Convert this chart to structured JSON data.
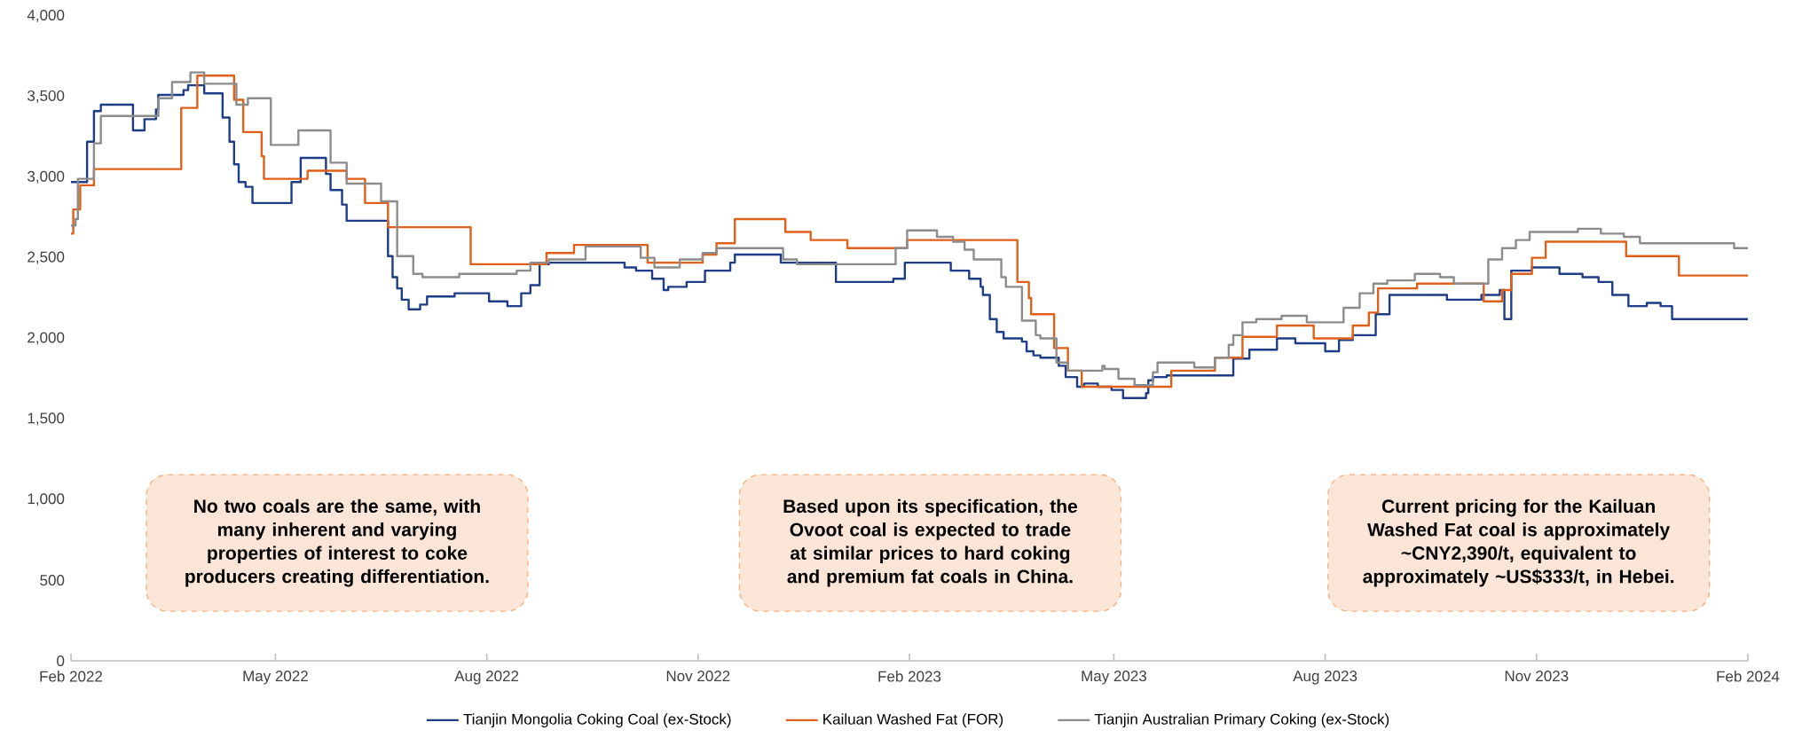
{
  "chart_data": {
    "type": "step",
    "xlim": [
      "2022-02-01",
      "2024-02-01"
    ],
    "xticks": [
      {
        "value": "2022-02-01",
        "label": "Feb 2022"
      },
      {
        "value": "2022-05-01",
        "label": "May 2022"
      },
      {
        "value": "2022-08-01",
        "label": "Aug 2022"
      },
      {
        "value": "2022-11-01",
        "label": "Nov 2022"
      },
      {
        "value": "2023-02-01",
        "label": "Feb 2023"
      },
      {
        "value": "2023-05-01",
        "label": "May 2023"
      },
      {
        "value": "2023-08-01",
        "label": "Aug 2023"
      },
      {
        "value": "2023-11-01",
        "label": "Nov 2023"
      },
      {
        "value": "2024-02-01",
        "label": "Feb 2024"
      }
    ],
    "ylim": [
      0,
      4000
    ],
    "yticks": [
      0,
      500,
      {
        "value": 1000,
        "label": "1,000"
      },
      {
        "value": 1500,
        "label": "1,500"
      },
      {
        "value": 2000,
        "label": "2,000"
      },
      {
        "value": 2500,
        "label": "2,500"
      },
      {
        "value": 3000,
        "label": "3,000"
      },
      {
        "value": 3500,
        "label": "3,500"
      },
      {
        "value": 4000,
        "label": "4,000"
      }
    ],
    "legend": "bottom",
    "series": [
      {
        "name": "Tianjin Mongolia Coking Coal (ex-Stock)",
        "color": "#1f3c88",
        "x": [
          "2022-02-01",
          "2022-02-08",
          "2022-02-11",
          "2022-02-14",
          "2022-02-28",
          "2022-03-05",
          "2022-03-10",
          "2022-03-11",
          "2022-03-22",
          "2022-03-24",
          "2022-03-31",
          "2022-04-08",
          "2022-04-11",
          "2022-04-13",
          "2022-04-15",
          "2022-04-18",
          "2022-04-21",
          "2022-05-08",
          "2022-05-12",
          "2022-05-23",
          "2022-05-25",
          "2022-05-30",
          "2022-06-01",
          "2022-06-19",
          "2022-06-21",
          "2022-06-23",
          "2022-06-25",
          "2022-06-28",
          "2022-07-03",
          "2022-07-06",
          "2022-07-18",
          "2022-08-02",
          "2022-08-10",
          "2022-08-16",
          "2022-08-20",
          "2022-08-24",
          "2022-08-28",
          "2022-09-30",
          "2022-10-05",
          "2022-10-12",
          "2022-10-17",
          "2022-10-19",
          "2022-10-27",
          "2022-11-04",
          "2022-11-15",
          "2022-11-17",
          "2022-12-07",
          "2022-12-31",
          "2023-01-25",
          "2023-01-30",
          "2023-02-19",
          "2023-02-27",
          "2023-03-04",
          "2023-03-05",
          "2023-03-08",
          "2023-03-11",
          "2023-03-14",
          "2023-03-22",
          "2023-03-24",
          "2023-03-27",
          "2023-03-30",
          "2023-04-07",
          "2023-04-10",
          "2023-04-15",
          "2023-04-18",
          "2023-04-24",
          "2023-04-30",
          "2023-05-05",
          "2023-05-15",
          "2023-05-16",
          "2023-05-18",
          "2023-05-24",
          "2023-06-22",
          "2023-06-29",
          "2023-07-11",
          "2023-07-19",
          "2023-08-01",
          "2023-08-07",
          "2023-08-13",
          "2023-08-23",
          "2023-08-29",
          "2023-09-23",
          "2023-10-08",
          "2023-10-16",
          "2023-10-18",
          "2023-10-21",
          "2023-10-30",
          "2023-11-11",
          "2023-11-21",
          "2023-11-28",
          "2023-12-04",
          "2023-12-11",
          "2023-12-19",
          "2023-12-25",
          "2023-12-30",
          "2024-02-01"
        ],
        "values": [
          2970,
          3220,
          3410,
          3450,
          3290,
          3360,
          3420,
          3510,
          3540,
          3570,
          3520,
          3370,
          3220,
          3080,
          2970,
          2940,
          2840,
          2970,
          3120,
          3020,
          2920,
          2830,
          2730,
          2510,
          2380,
          2310,
          2240,
          2180,
          2210,
          2260,
          2280,
          2230,
          2200,
          2280,
          2330,
          2460,
          2470,
          2440,
          2420,
          2370,
          2300,
          2320,
          2350,
          2420,
          2470,
          2520,
          2470,
          2350,
          2370,
          2470,
          2420,
          2370,
          2320,
          2270,
          2120,
          2040,
          2000,
          1980,
          1920,
          1895,
          1880,
          1830,
          1760,
          1700,
          1720,
          1700,
          1680,
          1630,
          1660,
          1740,
          1760,
          1770,
          1875,
          1930,
          2000,
          1970,
          1920,
          1990,
          2020,
          2150,
          2270,
          2240,
          2270,
          2300,
          2120,
          2420,
          2440,
          2400,
          2380,
          2350,
          2270,
          2200,
          2220,
          2200,
          2120,
          2120
        ]
      },
      {
        "name": "Kailuan Washed Fat (FOR)",
        "color": "#e0601a",
        "x": [
          "2022-02-01",
          "2022-02-02",
          "2022-02-05",
          "2022-02-11",
          "2022-03-21",
          "2022-03-28",
          "2022-04-13",
          "2022-04-17",
          "2022-04-25",
          "2022-04-26",
          "2022-05-15",
          "2022-06-01",
          "2022-06-09",
          "2022-06-19",
          "2022-07-25",
          "2022-08-27",
          "2022-09-08",
          "2022-10-10",
          "2022-11-03",
          "2022-11-09",
          "2022-11-17",
          "2022-12-09",
          "2022-12-20",
          "2023-01-05",
          "2023-01-31",
          "2023-03-20",
          "2023-03-25",
          "2023-03-26",
          "2023-04-05",
          "2023-04-11",
          "2023-04-17",
          "2023-05-26",
          "2023-06-14",
          "2023-06-26",
          "2023-07-11",
          "2023-07-27",
          "2023-08-13",
          "2023-08-20",
          "2023-08-24",
          "2023-09-10",
          "2023-10-09",
          "2023-10-17",
          "2023-10-21",
          "2023-10-30",
          "2023-11-05",
          "2023-12-10",
          "2024-01-02",
          "2024-02-01"
        ],
        "values": [
          2650,
          2800,
          2950,
          3050,
          3430,
          3630,
          3480,
          3280,
          3130,
          2990,
          3040,
          2990,
          2840,
          2690,
          2460,
          2530,
          2580,
          2470,
          2520,
          2590,
          2740,
          2660,
          2610,
          2560,
          2610,
          2350,
          2250,
          2150,
          1940,
          1800,
          1700,
          1800,
          1880,
          2010,
          2080,
          2000,
          2080,
          2160,
          2310,
          2340,
          2230,
          2300,
          2400,
          2500,
          2600,
          2510,
          2390,
          2390
        ]
      },
      {
        "name": "Tianjin Australian Primary Coking (ex-Stock)",
        "color": "#8c8c8c",
        "x": [
          "2022-02-01",
          "2022-02-03",
          "2022-02-04",
          "2022-02-11",
          "2022-02-14",
          "2022-03-11",
          "2022-03-17",
          "2022-03-25",
          "2022-03-31",
          "2022-04-14",
          "2022-04-19",
          "2022-04-29",
          "2022-05-11",
          "2022-05-25",
          "2022-06-01",
          "2022-06-16",
          "2022-06-23",
          "2022-06-30",
          "2022-07-04",
          "2022-07-20",
          "2022-08-14",
          "2022-08-20",
          "2022-08-28",
          "2022-09-13",
          "2022-10-07",
          "2022-10-13",
          "2022-10-24",
          "2022-11-03",
          "2022-11-09",
          "2022-12-08",
          "2022-12-14",
          "2023-01-26",
          "2023-01-31",
          "2023-02-13",
          "2023-02-20",
          "2023-02-25",
          "2023-03-01",
          "2023-03-13",
          "2023-03-15",
          "2023-03-22",
          "2023-03-28",
          "2023-03-30",
          "2023-04-06",
          "2023-04-11",
          "2023-04-26",
          "2023-04-27",
          "2023-05-03",
          "2023-05-10",
          "2023-05-18",
          "2023-05-20",
          "2023-06-05",
          "2023-06-14",
          "2023-06-20",
          "2023-06-22",
          "2023-06-26",
          "2023-07-02",
          "2023-07-13",
          "2023-07-24",
          "2023-08-09",
          "2023-08-16",
          "2023-08-22",
          "2023-08-28",
          "2023-09-09",
          "2023-09-20",
          "2023-09-26",
          "2023-10-11",
          "2023-10-17",
          "2023-10-23",
          "2023-10-29",
          "2023-11-19",
          "2023-11-29",
          "2023-12-09",
          "2023-12-16",
          "2024-01-26",
          "2024-02-01"
        ],
        "values": [
          2700,
          2740,
          2990,
          3210,
          3380,
          3490,
          3590,
          3650,
          3580,
          3450,
          3490,
          3200,
          3290,
          3090,
          2960,
          2850,
          2510,
          2400,
          2380,
          2400,
          2420,
          2470,
          2490,
          2570,
          2500,
          2440,
          2490,
          2530,
          2560,
          2490,
          2460,
          2560,
          2670,
          2630,
          2600,
          2550,
          2490,
          2380,
          2320,
          2110,
          2020,
          2000,
          1850,
          1800,
          1830,
          1810,
          1750,
          1710,
          1790,
          1850,
          1820,
          1880,
          1960,
          2020,
          2100,
          2120,
          2140,
          2100,
          2190,
          2280,
          2340,
          2360,
          2400,
          2380,
          2340,
          2490,
          2560,
          2610,
          2660,
          2680,
          2650,
          2630,
          2590,
          2560,
          2560
        ]
      }
    ],
    "annotations": [
      "No two coals are the same, with many inherent and varying properties of interest to coke producers creating differentiation.",
      "Based upon its specification, the Ovoot coal is expected to trade at similar prices to hard coking and premium fat coals in China.",
      "Current pricing for the Kailuan Washed Fat coal is approximately ~CNY2,390/t, equivalent to approximately ~US$333/t, in Hebei."
    ]
  }
}
